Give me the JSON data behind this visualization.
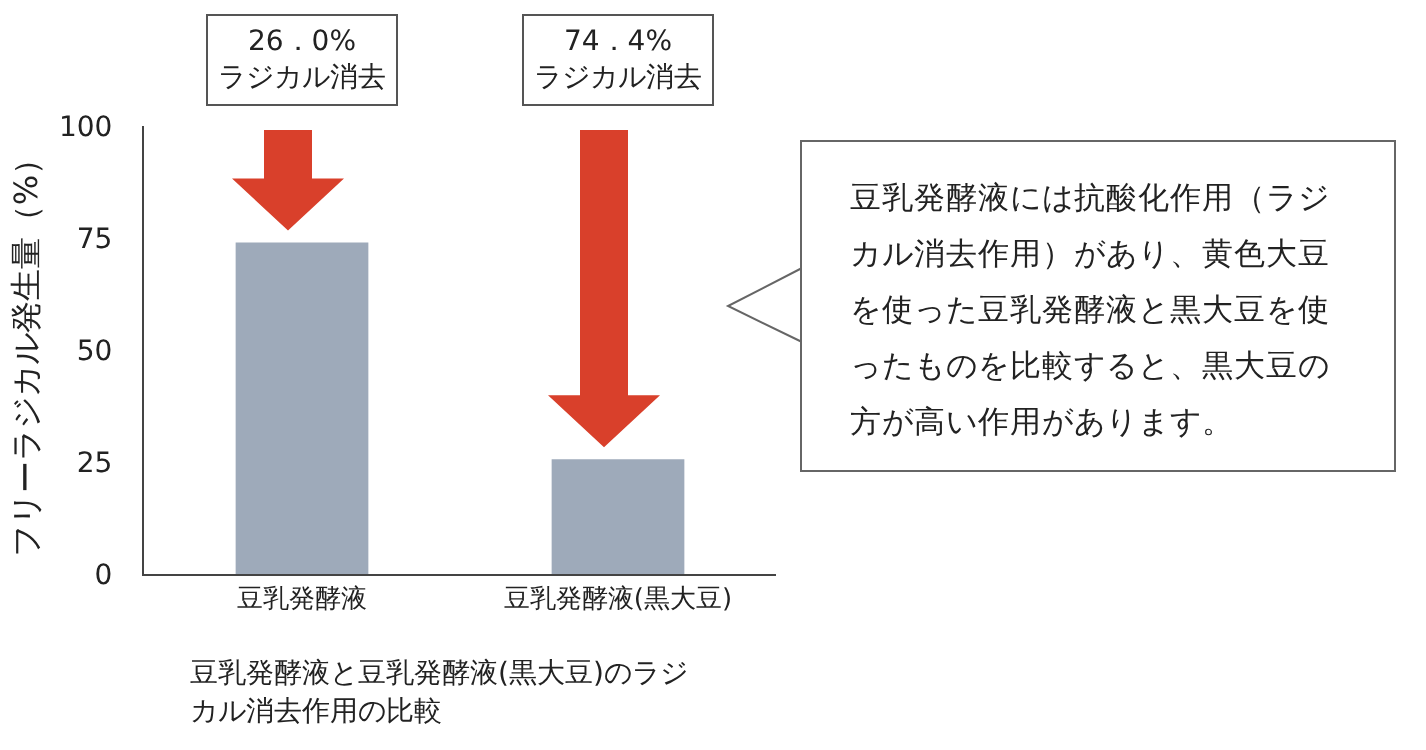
{
  "chart_data": {
    "type": "bar",
    "ylabel": "フリーラジカル発生量（%）",
    "categories": [
      "豆乳発酵液",
      "豆乳発酵液(黒大豆)"
    ],
    "values": [
      74.0,
      25.6
    ],
    "color": "#9eaaba",
    "ylim": [
      0,
      100
    ],
    "yticks": [
      0,
      25,
      50,
      75,
      100
    ],
    "grid": false,
    "annotations": [
      "26．0%\nラジカル消去",
      "74．4%\nラジカル消去",
      "豆乳発酵液には抗酸化作用（ラジカル消去作用）があり、黄色大豆を使った豆乳発酵液と黒大豆を使ったものを比較すると、黒大豆の方が高い作用があります。",
      "豆乳発酵液と豆乳発酵液(黒大豆)のラジカル消去作用の比較"
    ]
  }
}
